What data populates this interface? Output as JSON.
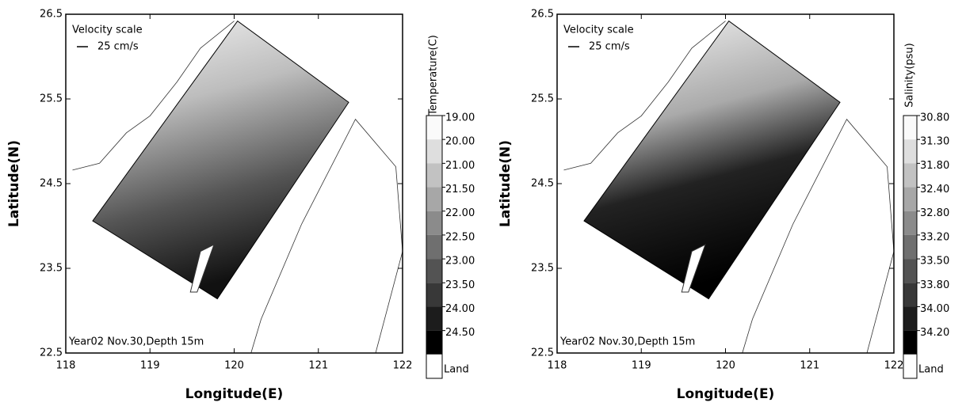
{
  "chart_data": [
    {
      "type": "contour",
      "xlabel": "Longitude(E)",
      "ylabel": "Latitude(N)",
      "xlim": [
        118,
        122
      ],
      "ylim": [
        22.5,
        26.5
      ],
      "xticks": [
        118,
        119,
        120,
        121,
        122
      ],
      "yticks": [
        22.5,
        23.5,
        24.5,
        25.5,
        26.5
      ],
      "scale_title": "Velocity scale",
      "scale_text": "25 cm/s",
      "annotation": "Year02 Nov.30,Depth 15m",
      "colorbar": {
        "label": "Temperature(C)",
        "levels": [
          {
            "value": 19,
            "label": "19.00"
          },
          {
            "value": 20,
            "label": "20.00"
          },
          {
            "value": 21,
            "label": "21.00"
          },
          {
            "value": 21.5,
            "label": "21.50"
          },
          {
            "value": 22,
            "label": "22.00"
          },
          {
            "value": 22.5,
            "label": "22.50"
          },
          {
            "value": 23,
            "label": "23.00"
          },
          {
            "value": 23.5,
            "label": "23.50"
          },
          {
            "value": 24,
            "label": "24.00"
          },
          {
            "value": 24.5,
            "label": "24.50"
          }
        ],
        "land_label": "Land"
      }
    },
    {
      "type": "contour",
      "xlabel": "Longitude(E)",
      "ylabel": "Latitude(N)",
      "xlim": [
        118,
        122
      ],
      "ylim": [
        22.5,
        26.5
      ],
      "xticks": [
        118,
        119,
        120,
        121,
        122
      ],
      "yticks": [
        22.5,
        23.5,
        24.5,
        25.5,
        26.5
      ],
      "scale_title": "Velocity scale",
      "scale_text": "25 cm/s",
      "annotation": "Year02 Nov.30,Depth 15m",
      "colorbar": {
        "label": "Salinity(psu)",
        "levels": [
          {
            "value": 30.8,
            "label": "30.80"
          },
          {
            "value": 31.3,
            "label": "31.30"
          },
          {
            "value": 31.8,
            "label": "31.80"
          },
          {
            "value": 32.4,
            "label": "32.40"
          },
          {
            "value": 32.8,
            "label": "32.80"
          },
          {
            "value": 33.2,
            "label": "33.20"
          },
          {
            "value": 33.5,
            "label": "33.50"
          },
          {
            "value": 33.8,
            "label": "33.80"
          },
          {
            "value": 34,
            "label": "34.00"
          },
          {
            "value": 34.2,
            "label": "34.20"
          }
        ],
        "land_label": "Land"
      }
    }
  ]
}
